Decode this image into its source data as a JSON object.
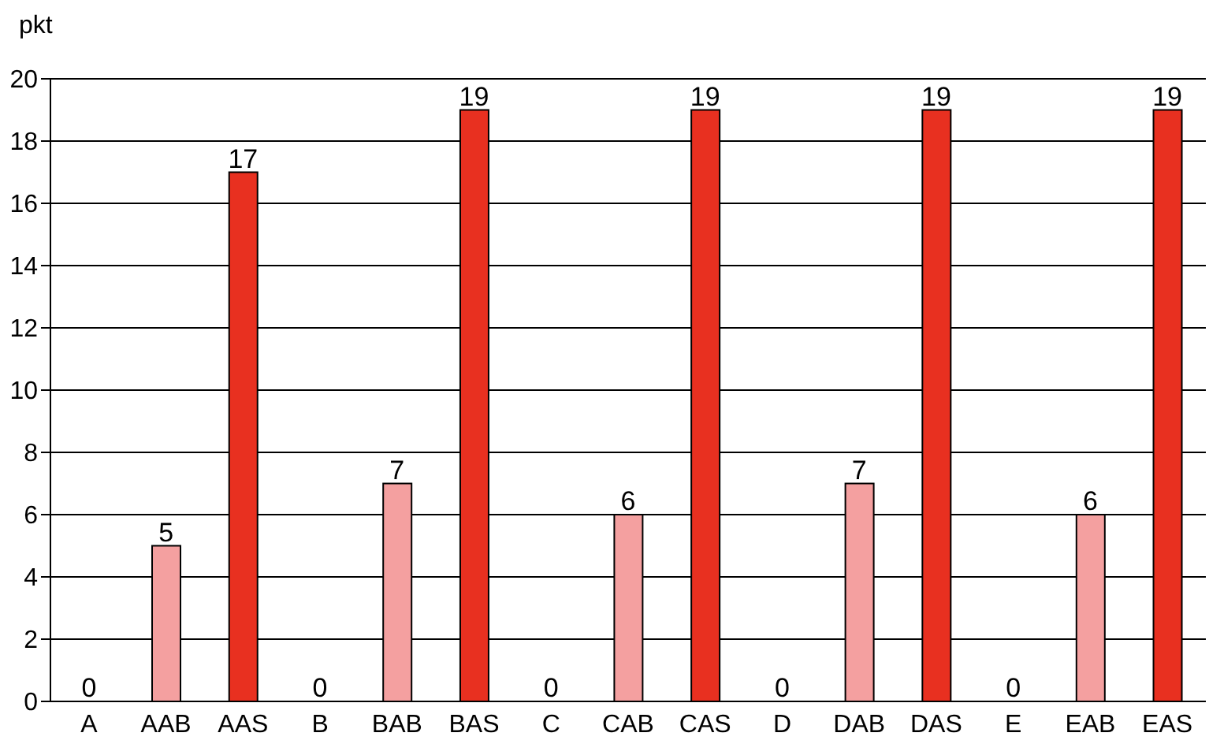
{
  "chart_data": {
    "type": "bar",
    "ylabel": "pkt",
    "categories": [
      "A",
      "AAB",
      "AAS",
      "B",
      "BAB",
      "BAS",
      "C",
      "CAB",
      "CAS",
      "D",
      "DAB",
      "DAS",
      "E",
      "EAB",
      "EAS"
    ],
    "values": [
      0,
      5,
      17,
      0,
      7,
      19,
      0,
      6,
      19,
      0,
      7,
      19,
      0,
      6,
      19
    ],
    "colors": [
      "#ff2020",
      "#f4a0a0",
      "#e83020",
      "#ff2020",
      "#f4a0a0",
      "#e83020",
      "#ff2020",
      "#f4a0a0",
      "#e83020",
      "#ff2020",
      "#f4a0a0",
      "#e83020",
      "#ff2020",
      "#f4a0a0",
      "#e83020"
    ],
    "ylim": [
      0,
      20
    ],
    "yticks": [
      0,
      2,
      4,
      6,
      8,
      10,
      12,
      14,
      16,
      18,
      20
    ],
    "grid": "y",
    "data_labels": true
  }
}
